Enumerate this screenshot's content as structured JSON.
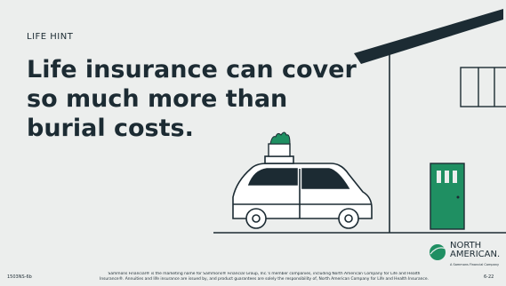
{
  "kicker": "LIFE HINT",
  "headline": [
    "Life insurance can cover",
    "so much more than",
    "burial costs."
  ],
  "logo": {
    "name": [
      "NORTH",
      "AMERICAN."
    ],
    "tagline": "A Sammons Financial Company"
  },
  "footer": {
    "code": "1503NS-6b",
    "disclaimer": [
      "Sammons Financial® is the marketing name for Sammons® Financial Group, Inc.'s member companies, including North American Company for Life and Health",
      "Insurance®. Annuities and life insurance are issued by, and product guarantees are solely the responsibility of, North American Company for Life and Health Insurance."
    ],
    "date": "6-22"
  }
}
